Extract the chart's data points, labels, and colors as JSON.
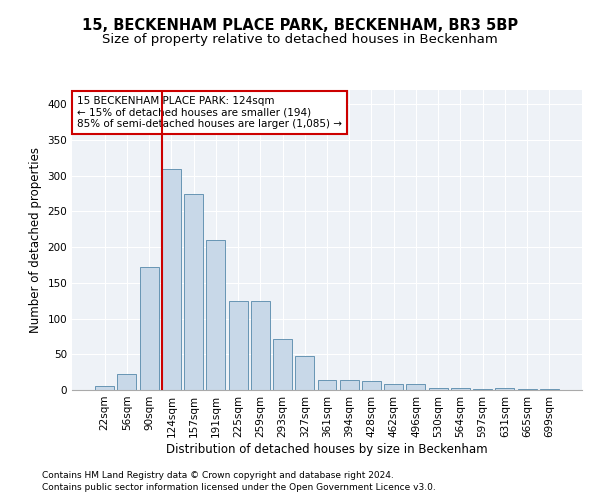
{
  "title": "15, BECKENHAM PLACE PARK, BECKENHAM, BR3 5BP",
  "subtitle": "Size of property relative to detached houses in Beckenham",
  "xlabel": "Distribution of detached houses by size in Beckenham",
  "ylabel": "Number of detached properties",
  "bar_labels": [
    "22sqm",
    "56sqm",
    "90sqm",
    "124sqm",
    "157sqm",
    "191sqm",
    "225sqm",
    "259sqm",
    "293sqm",
    "327sqm",
    "361sqm",
    "394sqm",
    "428sqm",
    "462sqm",
    "496sqm",
    "530sqm",
    "564sqm",
    "597sqm",
    "631sqm",
    "665sqm",
    "699sqm"
  ],
  "bar_heights": [
    5,
    22,
    172,
    310,
    274,
    210,
    125,
    125,
    72,
    47,
    14,
    14,
    13,
    8,
    8,
    3,
    3,
    2,
    3,
    2,
    2
  ],
  "bar_color": "#c8d8e8",
  "bar_edge_color": "#5588aa",
  "vline_x_index": 3,
  "vline_color": "#cc0000",
  "annotation_text": "15 BECKENHAM PLACE PARK: 124sqm\n← 15% of detached houses are smaller (194)\n85% of semi-detached houses are larger (1,085) →",
  "annotation_box_color": "#ffffff",
  "annotation_box_edge_color": "#cc0000",
  "ylim": [
    0,
    420
  ],
  "yticks": [
    0,
    50,
    100,
    150,
    200,
    250,
    300,
    350,
    400
  ],
  "footer1": "Contains HM Land Registry data © Crown copyright and database right 2024.",
  "footer2": "Contains public sector information licensed under the Open Government Licence v3.0.",
  "title_fontsize": 10.5,
  "subtitle_fontsize": 9.5,
  "xlabel_fontsize": 8.5,
  "ylabel_fontsize": 8.5,
  "tick_fontsize": 7.5,
  "annotation_fontsize": 7.5,
  "footer_fontsize": 6.5,
  "bg_color": "#eef2f7"
}
